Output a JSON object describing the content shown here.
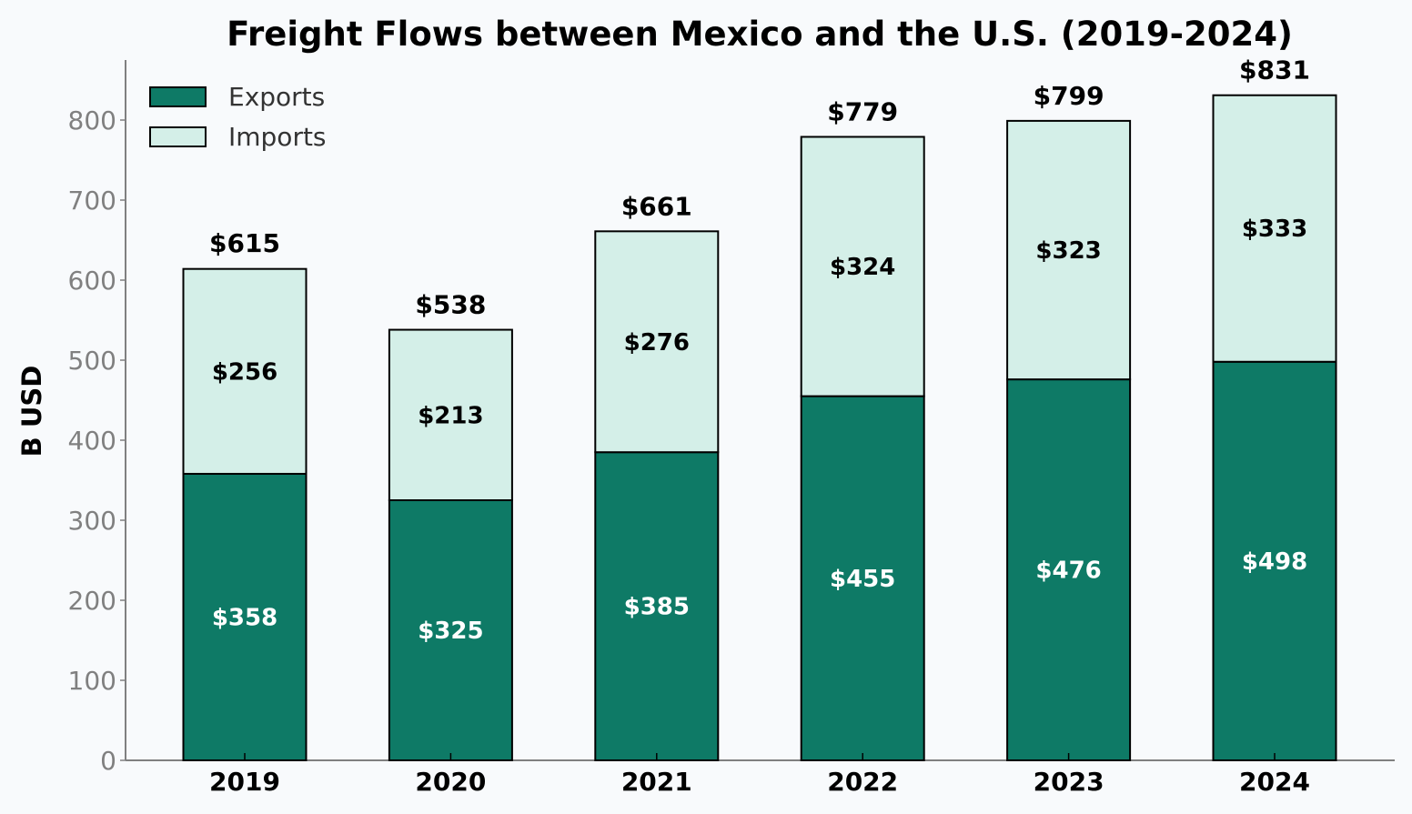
{
  "chart_data": {
    "type": "bar",
    "stacked": true,
    "title": "Freight Flows between Mexico and the U.S. (2019-2024)",
    "xlabel": "",
    "ylabel": "B USD",
    "ylim": [
      0,
      875
    ],
    "yticks": [
      0,
      100,
      200,
      300,
      400,
      500,
      600,
      700,
      800
    ],
    "categories": [
      "2019",
      "2020",
      "2021",
      "2022",
      "2023",
      "2024"
    ],
    "series": [
      {
        "name": "Exports",
        "color": "#0e7a66",
        "label_color": "#ffffff",
        "values": [
          358,
          325,
          385,
          455,
          476,
          498
        ]
      },
      {
        "name": "Imports",
        "color": "#d4efe8",
        "label_color": "#000000",
        "values": [
          256,
          213,
          276,
          324,
          323,
          333
        ]
      }
    ],
    "totals": [
      615,
      538,
      661,
      779,
      799,
      831
    ],
    "value_prefix": "$",
    "legend_position": "top-left",
    "grid": false
  }
}
